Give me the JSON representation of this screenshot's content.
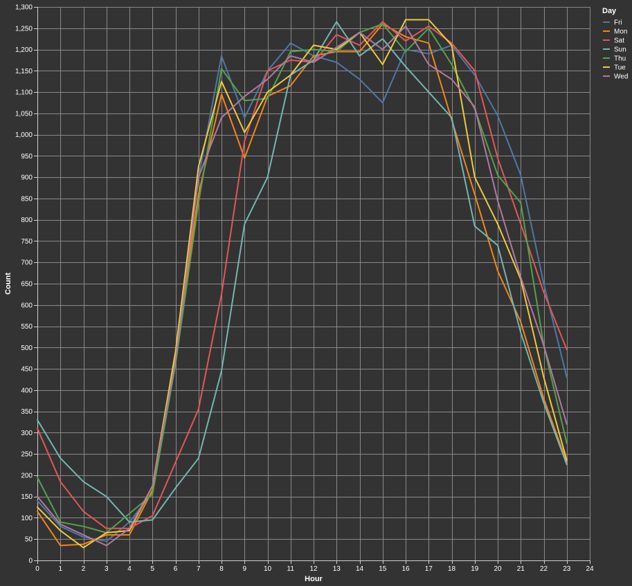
{
  "chart_data": {
    "type": "line",
    "xlabel": "Hour",
    "ylabel": "Count",
    "legend_title": "Day",
    "legend_position": "top-right",
    "grid": true,
    "xlim": [
      0,
      24
    ],
    "ylim": [
      0,
      1300
    ],
    "x_ticks": [
      0,
      1,
      2,
      3,
      4,
      5,
      6,
      7,
      8,
      9,
      10,
      11,
      12,
      13,
      14,
      15,
      16,
      17,
      18,
      19,
      20,
      21,
      22,
      23,
      24
    ],
    "y_ticks": [
      0,
      50,
      100,
      150,
      200,
      250,
      300,
      350,
      400,
      450,
      500,
      550,
      600,
      650,
      700,
      750,
      800,
      850,
      900,
      950,
      1000,
      1050,
      1100,
      1150,
      1200,
      1250,
      1300
    ],
    "x": [
      0,
      1,
      2,
      3,
      4,
      5,
      6,
      7,
      8,
      9,
      10,
      11,
      12,
      13,
      14,
      15,
      16,
      17,
      18,
      19,
      20,
      21,
      22,
      23
    ],
    "series": [
      {
        "name": "Fri",
        "color": "#4c78a8",
        "values": [
          140,
          80,
          55,
          45,
          90,
          160,
          470,
          900,
          1185,
          1040,
          1150,
          1215,
          1185,
          1170,
          1130,
          1075,
          1200,
          1190,
          1210,
          1140,
          1045,
          905,
          650,
          430
        ]
      },
      {
        "name": "Mon",
        "color": "#f58518",
        "values": [
          115,
          35,
          38,
          60,
          60,
          165,
          480,
          860,
          1095,
          945,
          1090,
          1115,
          1185,
          1195,
          1195,
          1260,
          1230,
          1215,
          1035,
          860,
          680,
          560,
          380,
          230
        ]
      },
      {
        "name": "Sat",
        "color": "#e45756",
        "values": [
          310,
          185,
          115,
          75,
          75,
          105,
          230,
          355,
          625,
          985,
          1150,
          1175,
          1170,
          1235,
          1210,
          1265,
          1220,
          1255,
          1215,
          1150,
          945,
          790,
          630,
          495
        ]
      },
      {
        "name": "Sun",
        "color": "#72b7b2",
        "values": [
          330,
          240,
          185,
          150,
          90,
          95,
          170,
          240,
          445,
          790,
          900,
          1140,
          1175,
          1265,
          1185,
          1225,
          1160,
          1100,
          1040,
          785,
          740,
          535,
          370,
          225
        ]
      },
      {
        "name": "Thu",
        "color": "#54a24b",
        "values": [
          195,
          90,
          80,
          65,
          110,
          155,
          460,
          840,
          1155,
          1080,
          1085,
          1195,
          1200,
          1195,
          1240,
          1260,
          1195,
          1250,
          1165,
          1060,
          905,
          840,
          505,
          275
        ]
      },
      {
        "name": "Tue",
        "color": "#eeca3b",
        "values": [
          125,
          70,
          30,
          65,
          70,
          175,
          490,
          925,
          1125,
          1005,
          1100,
          1140,
          1210,
          1200,
          1240,
          1165,
          1270,
          1270,
          1210,
          900,
          790,
          660,
          430,
          235
        ]
      },
      {
        "name": "Wed",
        "color": "#b279a2",
        "values": [
          150,
          85,
          60,
          35,
          75,
          175,
          470,
          900,
          1040,
          1090,
          1130,
          1185,
          1170,
          1205,
          1240,
          1200,
          1255,
          1165,
          1130,
          1065,
          845,
          665,
          505,
          320
        ]
      }
    ]
  }
}
